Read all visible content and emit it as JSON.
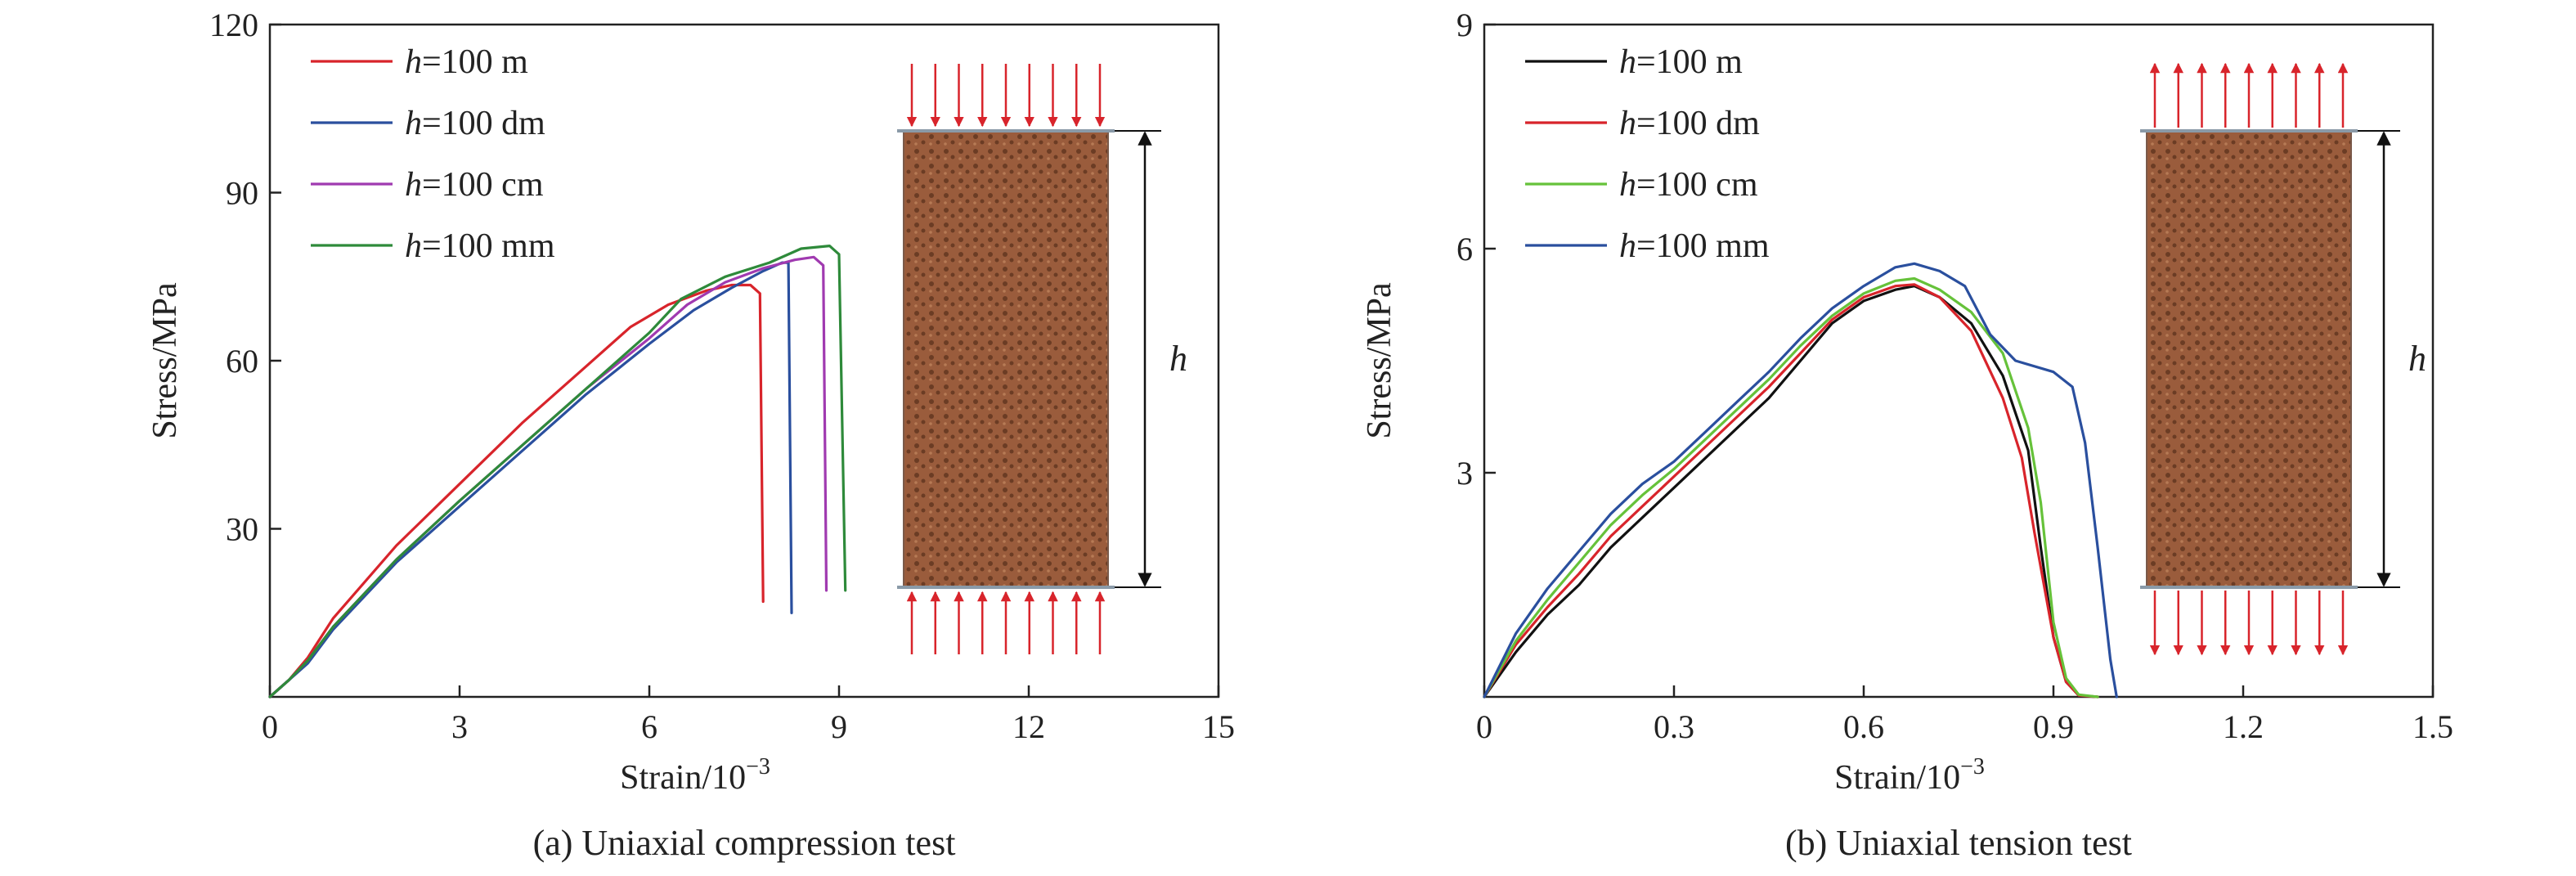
{
  "colors": {
    "red": "#d8242b",
    "blue": "#2a4f9e",
    "purple": "#a03ab0",
    "green": "#2e8a3a",
    "black": "#111111",
    "lightgreen": "#66c23a",
    "arrow": "#d8242b",
    "specimen": "#9a5c3c",
    "specimen_dark": "#6b3c24"
  },
  "chart_data": [
    {
      "type": "line",
      "caption": "(a) Uniaxial compression test",
      "xlabel_main": "Strain/10",
      "xlabel_exp": "−3",
      "ylabel": "Stress/MPa",
      "xlim": [
        0,
        15
      ],
      "ylim": [
        0,
        120
      ],
      "xticks": [
        0,
        3,
        6,
        9,
        12,
        15
      ],
      "yticks": [
        30,
        60,
        90,
        120
      ],
      "xtick_labels": [
        "0",
        "3",
        "6",
        "9",
        "12",
        "15"
      ],
      "ytick_labels": [
        "30",
        "60",
        "90",
        "120"
      ],
      "specimen_label": "h",
      "load": "compression",
      "series": [
        {
          "name_italic": "h",
          "name_rest": "=100 m",
          "color": "red",
          "x": [
            0,
            0.3,
            0.6,
            1.0,
            2.0,
            3.0,
            4.0,
            5.0,
            5.7,
            6.3,
            6.9,
            7.3,
            7.6,
            7.75,
            7.8
          ],
          "y": [
            0,
            3,
            7,
            14,
            27,
            38,
            49,
            59,
            66,
            70,
            72.5,
            73.5,
            73.5,
            72,
            17
          ]
        },
        {
          "name_italic": "h",
          "name_rest": "=100 dm",
          "color": "blue",
          "x": [
            0,
            0.3,
            0.6,
            1.0,
            2.0,
            3.0,
            4.0,
            5.0,
            6.0,
            6.7,
            7.3,
            7.8,
            8.1,
            8.2,
            8.25
          ],
          "y": [
            0,
            3,
            6,
            12,
            24,
            34,
            44,
            54,
            63,
            69,
            73,
            76,
            77.5,
            77.5,
            15
          ]
        },
        {
          "name_italic": "h",
          "name_rest": "=100 cm",
          "color": "purple",
          "x": [
            0,
            0.3,
            0.6,
            1.0,
            2.0,
            3.0,
            4.0,
            5.0,
            6.0,
            6.6,
            7.2,
            7.8,
            8.3,
            8.6,
            8.75,
            8.8
          ],
          "y": [
            0,
            3,
            6.5,
            12.5,
            24.5,
            35,
            45,
            55,
            64,
            70,
            74,
            76.5,
            78,
            78.5,
            77,
            19
          ]
        },
        {
          "name_italic": "h",
          "name_rest": "=100 mm",
          "color": "green",
          "x": [
            0,
            0.3,
            0.6,
            1.0,
            2.0,
            3.0,
            4.0,
            5.0,
            6.0,
            6.5,
            7.2,
            7.9,
            8.4,
            8.85,
            9.0,
            9.1
          ],
          "y": [
            0,
            3,
            6.5,
            12.5,
            24.5,
            35,
            45,
            55,
            65,
            71,
            75,
            77.5,
            80,
            80.5,
            79,
            19
          ]
        }
      ]
    },
    {
      "type": "line",
      "caption": "(b) Uniaxial tension test",
      "xlabel_main": "Strain/10",
      "xlabel_exp": "−3",
      "ylabel": "Stress/MPa",
      "xlim": [
        0,
        1.5
      ],
      "ylim": [
        0,
        9
      ],
      "xticks": [
        0,
        0.3,
        0.6,
        0.9,
        1.2,
        1.5
      ],
      "yticks": [
        3,
        6,
        9
      ],
      "xtick_labels": [
        "0",
        "0.3",
        "0.6",
        "0.9",
        "1.2",
        "1.5"
      ],
      "ytick_labels": [
        "3",
        "6",
        "9"
      ],
      "specimen_label": "h",
      "load": "tension",
      "series": [
        {
          "name_italic": "h",
          "name_rest": "=100 m",
          "color": "black",
          "x": [
            0,
            0.05,
            0.1,
            0.15,
            0.2,
            0.25,
            0.3,
            0.35,
            0.4,
            0.45,
            0.5,
            0.55,
            0.6,
            0.65,
            0.68,
            0.72,
            0.77,
            0.82,
            0.86,
            0.88,
            0.9,
            0.92,
            0.94,
            0.97
          ],
          "y": [
            0,
            0.6,
            1.1,
            1.5,
            2.0,
            2.4,
            2.8,
            3.2,
            3.6,
            4.0,
            4.5,
            5.0,
            5.3,
            5.45,
            5.5,
            5.35,
            5.0,
            4.3,
            3.3,
            2.0,
            0.8,
            0.2,
            0.02,
            0
          ]
        },
        {
          "name_italic": "h",
          "name_rest": "=100 dm",
          "color": "red",
          "x": [
            0,
            0.05,
            0.1,
            0.15,
            0.2,
            0.25,
            0.3,
            0.35,
            0.4,
            0.45,
            0.5,
            0.55,
            0.6,
            0.65,
            0.68,
            0.72,
            0.77,
            0.82,
            0.85,
            0.87,
            0.9,
            0.92,
            0.94,
            0.97
          ],
          "y": [
            0,
            0.7,
            1.2,
            1.65,
            2.15,
            2.55,
            2.95,
            3.35,
            3.75,
            4.15,
            4.6,
            5.05,
            5.35,
            5.5,
            5.52,
            5.35,
            4.9,
            4.0,
            3.2,
            2.2,
            0.8,
            0.2,
            0.02,
            0
          ]
        },
        {
          "name_italic": "h",
          "name_rest": "=100 cm",
          "color": "lightgreen",
          "x": [
            0,
            0.05,
            0.1,
            0.15,
            0.2,
            0.25,
            0.3,
            0.35,
            0.4,
            0.45,
            0.5,
            0.55,
            0.6,
            0.65,
            0.68,
            0.72,
            0.77,
            0.82,
            0.86,
            0.88,
            0.9,
            0.92,
            0.94,
            0.97
          ],
          "y": [
            0,
            0.75,
            1.3,
            1.8,
            2.3,
            2.7,
            3.05,
            3.45,
            3.85,
            4.25,
            4.7,
            5.1,
            5.4,
            5.57,
            5.6,
            5.45,
            5.15,
            4.6,
            3.6,
            2.6,
            1.0,
            0.25,
            0.03,
            0
          ]
        },
        {
          "name_italic": "h",
          "name_rest": "=100 mm",
          "color": "blue",
          "x": [
            0,
            0.05,
            0.1,
            0.15,
            0.2,
            0.25,
            0.3,
            0.35,
            0.4,
            0.45,
            0.5,
            0.55,
            0.6,
            0.65,
            0.68,
            0.72,
            0.76,
            0.8,
            0.84,
            0.9,
            0.93,
            0.95,
            0.97,
            0.99,
            1.0
          ],
          "y": [
            0,
            0.85,
            1.45,
            1.95,
            2.45,
            2.85,
            3.15,
            3.55,
            3.95,
            4.35,
            4.8,
            5.2,
            5.5,
            5.75,
            5.8,
            5.7,
            5.5,
            4.85,
            4.5,
            4.35,
            4.15,
            3.4,
            2.0,
            0.5,
            0
          ]
        }
      ]
    }
  ]
}
